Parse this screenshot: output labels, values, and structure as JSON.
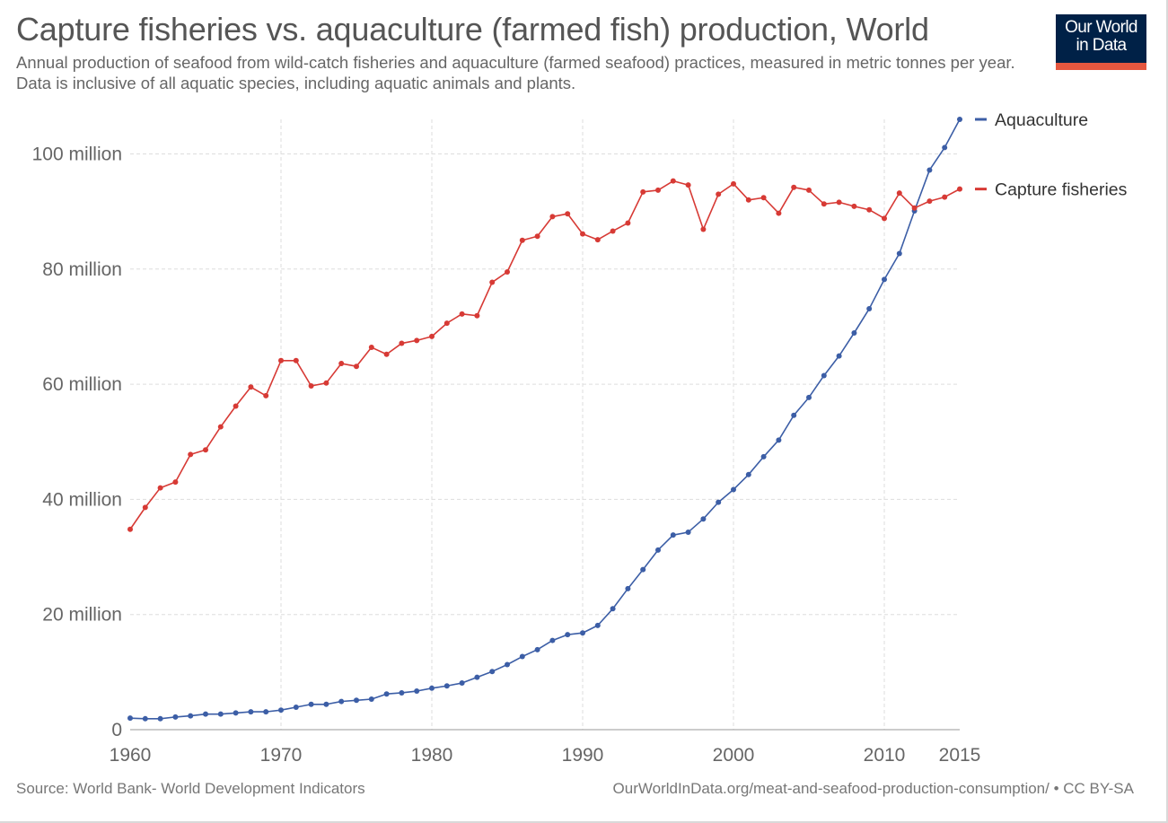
{
  "header": {
    "title": "Capture fisheries vs. aquaculture (farmed fish) production, World",
    "subtitle": "Annual production of seafood from wild-catch fisheries and aquaculture (farmed seafood) practices, measured in metric tonnes per year. Data is inclusive of all aquatic species, including aquatic animals and plants."
  },
  "logo": {
    "line1": "Our World",
    "line2": "in Data"
  },
  "footer": {
    "source": "Source: World Bank- World Development Indicators",
    "url": "OurWorldInData.org/meat-and-seafood-production-consumption/ • CC BY-SA"
  },
  "colors": {
    "aquaculture": "#3c5ea6",
    "capture": "#d73a35",
    "grid": "#dddddd",
    "brand": "#002147",
    "brand_accent": "#e6573f"
  },
  "chart_data": {
    "type": "line",
    "title": "Capture fisheries vs. aquaculture (farmed fish) production, World",
    "xlim": [
      1960,
      2015
    ],
    "ylim": [
      0,
      106000000
    ],
    "x_ticks": [
      1960,
      1970,
      1980,
      1990,
      2000,
      2010,
      2015
    ],
    "y_ticks": [
      {
        "value": 0,
        "label": "0"
      },
      {
        "value": 20000000,
        "label": "20 million"
      },
      {
        "value": 40000000,
        "label": "40 million"
      },
      {
        "value": 60000000,
        "label": "60 million"
      },
      {
        "value": 80000000,
        "label": "80 million"
      },
      {
        "value": 100000000,
        "label": "100 million"
      }
    ],
    "grid": true,
    "legend": "right",
    "x": [
      1960,
      1961,
      1962,
      1963,
      1964,
      1965,
      1966,
      1967,
      1968,
      1969,
      1970,
      1971,
      1972,
      1973,
      1974,
      1975,
      1976,
      1977,
      1978,
      1979,
      1980,
      1981,
      1982,
      1983,
      1984,
      1985,
      1986,
      1987,
      1988,
      1989,
      1990,
      1991,
      1992,
      1993,
      1994,
      1995,
      1996,
      1997,
      1998,
      1999,
      2000,
      2001,
      2002,
      2003,
      2004,
      2005,
      2006,
      2007,
      2008,
      2009,
      2010,
      2011,
      2012,
      2013,
      2014,
      2015
    ],
    "series": [
      {
        "name": "Aquaculture",
        "color": "#3c5ea6",
        "values": [
          2000000,
          1900000,
          1900000,
          2200000,
          2400000,
          2700000,
          2700000,
          2900000,
          3100000,
          3100000,
          3400000,
          3900000,
          4400000,
          4400000,
          4900000,
          5100000,
          5300000,
          6200000,
          6400000,
          6700000,
          7200000,
          7600000,
          8100000,
          9100000,
          10100000,
          11300000,
          12700000,
          13900000,
          15500000,
          16500000,
          16800000,
          18100000,
          21000000,
          24500000,
          27800000,
          31200000,
          33800000,
          34300000,
          36600000,
          39500000,
          41700000,
          44300000,
          47400000,
          50300000,
          54600000,
          57700000,
          61500000,
          64900000,
          68900000,
          73100000,
          78200000,
          82700000,
          90100000,
          97200000,
          101100000,
          106000000
        ]
      },
      {
        "name": "Capture fisheries",
        "color": "#d73a35",
        "values": [
          34800000,
          38600000,
          42000000,
          43000000,
          47800000,
          48600000,
          52600000,
          56200000,
          59500000,
          58000000,
          64100000,
          64100000,
          59700000,
          60200000,
          63600000,
          63100000,
          66400000,
          65200000,
          67100000,
          67600000,
          68300000,
          70600000,
          72200000,
          71900000,
          77700000,
          79500000,
          85000000,
          85700000,
          89100000,
          89600000,
          86100000,
          85100000,
          86600000,
          88000000,
          93400000,
          93700000,
          95300000,
          94600000,
          86900000,
          93000000,
          94800000,
          92000000,
          92400000,
          89700000,
          94200000,
          93700000,
          91300000,
          91600000,
          90900000,
          90300000,
          88800000,
          93200000,
          90600000,
          91800000,
          92500000,
          93900000
        ]
      }
    ]
  }
}
